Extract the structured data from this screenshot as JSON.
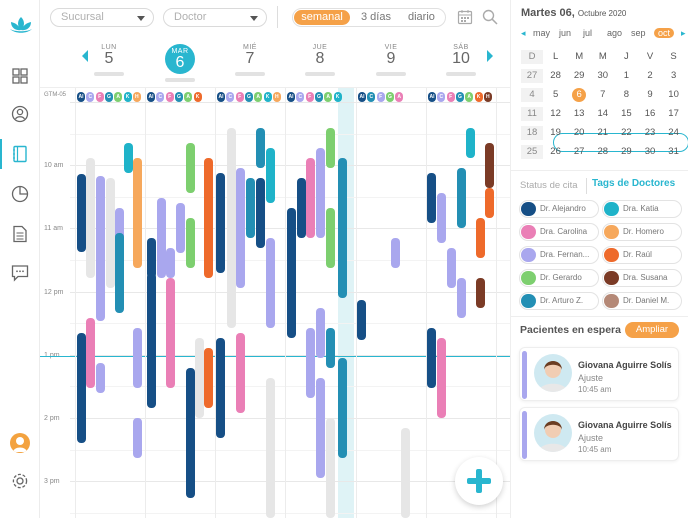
{
  "filters": {
    "sucursal_placeholder": "Sucursal",
    "doctor_placeholder": "Doctor",
    "views": [
      "semanal",
      "3 días",
      "diario"
    ],
    "active_view": "semanal"
  },
  "timezone_label": "GTM-05",
  "days": [
    {
      "name": "LUN",
      "num": "5"
    },
    {
      "name": "MAR",
      "num": "6",
      "today": true
    },
    {
      "name": "MIÉ",
      "num": "7"
    },
    {
      "name": "JUE",
      "num": "8"
    },
    {
      "name": "VIE",
      "num": "9"
    },
    {
      "name": "SÁB",
      "num": "10"
    }
  ],
  "hours": [
    "10 am",
    "11 am",
    "12 pm",
    "1 pm",
    "2 pm",
    "3 pm"
  ],
  "doctor_chips": [
    "Al",
    "C",
    "F",
    "G",
    "A",
    "K",
    "H",
    "D",
    "R",
    "S"
  ],
  "right_panel": {
    "date_title": "Martes 06,",
    "date_sub": "Octubre 2020",
    "months": [
      "may",
      "jun",
      "jul",
      "ago",
      "sep",
      "oct"
    ],
    "active_month": "oct",
    "weekday_headers": [
      "D",
      "L",
      "M",
      "M",
      "J",
      "V",
      "S"
    ],
    "weeks": [
      {
        "wk": "27",
        "days": [
          "28",
          "29",
          "30",
          "1",
          "2",
          "3"
        ]
      },
      {
        "wk": "4",
        "days": [
          "5",
          "6",
          "7",
          "8",
          "9",
          "10"
        ]
      },
      {
        "wk": "11",
        "days": [
          "12",
          "13",
          "14",
          "15",
          "16",
          "17"
        ]
      },
      {
        "wk": "18",
        "days": [
          "19",
          "20",
          "21",
          "22",
          "23",
          "24"
        ]
      },
      {
        "wk": "25",
        "days": [
          "26",
          "27",
          "28",
          "29",
          "30",
          "31"
        ]
      }
    ],
    "status_title": "Status de cita",
    "tags_title": "Tags de Doctores",
    "tags": [
      {
        "name": "Dr. Alejandro",
        "color": "#164f86"
      },
      {
        "name": "Dra. Katia",
        "color": "#1fb3c9"
      },
      {
        "name": "Dra. Carolina",
        "color": "#ea7fb6"
      },
      {
        "name": "Dr. Homero",
        "color": "#f6a85c"
      },
      {
        "name": "Dra. Fernan...",
        "color": "#a9a7ee"
      },
      {
        "name": "Dr. Raúl",
        "color": "#ee6a2b"
      },
      {
        "name": "Dr. Gerardo",
        "color": "#7dcf6f"
      },
      {
        "name": "Dra. Susana",
        "color": "#7b3b26"
      },
      {
        "name": "Dr. Arturo Z.",
        "color": "#238fb4"
      },
      {
        "name": "Dr. Daniel M.",
        "color": "#b58977"
      }
    ],
    "waiting_title": "Pacientes en espera",
    "ampliar": "Ampliar",
    "patients": [
      {
        "name": "Giovana Aguirre Solís",
        "reason": "Ajuste",
        "time": "10:45 am"
      },
      {
        "name": "Giovana Aguirre Solís",
        "reason": "Ajuste",
        "time": "10:45 am"
      }
    ]
  },
  "colors": {
    "accent": "#29b6cf",
    "orange": "#f5a148",
    "navy": "#164f86",
    "teal": "#1fb3c9",
    "pink": "#ea7fb6",
    "lavender": "#a9a7ee",
    "green": "#7dcf6f",
    "rust": "#ee6a2b",
    "brown": "#7b3b26",
    "steel": "#238fb4",
    "tan": "#b58977",
    "peach": "#f6a85c",
    "grey": "#e6e6e6"
  },
  "icons": [
    "lotus-logo-icon",
    "dashboard-icon",
    "patient-icon",
    "agenda-icon",
    "reports-icon",
    "document-icon",
    "chat-icon",
    "user-avatar-icon",
    "settings-icon",
    "calendar-icon",
    "search-icon",
    "chevron-left-icon",
    "chevron-right-icon",
    "add-icon"
  ]
}
